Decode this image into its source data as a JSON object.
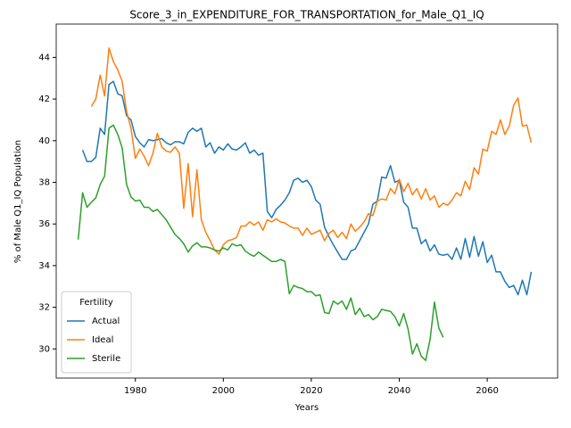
{
  "chart_data": {
    "type": "line",
    "title": "Score_3_in_EXPENDITURE_FOR_TRANSPORTATION_for_Male_Q1_IQ",
    "xlabel": "Years",
    "ylabel": "% of Male Q1_IQ Population",
    "legend_title": "Fertility",
    "legend": "lower left",
    "grid": false,
    "x": [
      1967,
      1968,
      1969,
      1970,
      1971,
      1972,
      1973,
      1974,
      1975,
      1976,
      1977,
      1978,
      1979,
      1980,
      1981,
      1982,
      1983,
      1984,
      1985,
      1986,
      1987,
      1988,
      1989,
      1990,
      1991,
      1992,
      1993,
      1994,
      1995,
      1996,
      1997,
      1998,
      1999,
      2000,
      2001,
      2002,
      2003,
      2004,
      2005,
      2006,
      2007,
      2008,
      2009,
      2010,
      2011,
      2012,
      2013,
      2014,
      2015,
      2016,
      2017,
      2018,
      2019,
      2020,
      2021,
      2022,
      2023,
      2024,
      2025,
      2026,
      2027,
      2028,
      2029,
      2030,
      2031,
      2032,
      2033,
      2034,
      2035,
      2036,
      2037,
      2038,
      2039,
      2040,
      2041,
      2042,
      2043,
      2044,
      2045,
      2046,
      2047,
      2048,
      2049,
      2050,
      2051,
      2052,
      2053,
      2054,
      2055,
      2056,
      2057,
      2058,
      2059,
      2060,
      2061,
      2062,
      2063,
      2064,
      2065,
      2066,
      2067,
      2068,
      2069,
      2070
    ],
    "series": [
      {
        "name": "Actual",
        "color": "#1f77b4",
        "values": [
          null,
          39.55,
          39.0,
          39.0,
          39.2,
          40.6,
          40.3,
          42.7,
          42.85,
          42.25,
          42.15,
          41.2,
          41.0,
          40.2,
          39.9,
          39.7,
          40.05,
          40.0,
          40.05,
          40.1,
          39.9,
          39.8,
          39.95,
          39.95,
          39.85,
          40.4,
          40.6,
          40.45,
          40.6,
          39.7,
          39.9,
          39.4,
          39.7,
          39.55,
          39.85,
          39.6,
          39.55,
          39.7,
          39.9,
          39.4,
          39.55,
          39.3,
          39.4,
          36.6,
          36.3,
          36.7,
          36.9,
          37.15,
          37.5,
          38.1,
          38.2,
          38.0,
          38.1,
          37.8,
          37.15,
          36.95,
          35.85,
          35.4,
          35.0,
          34.65,
          34.3,
          34.3,
          34.7,
          34.8,
          35.2,
          35.6,
          36.0,
          36.95,
          37.1,
          38.25,
          38.2,
          38.8,
          38.0,
          38.1,
          37.05,
          36.8,
          35.8,
          35.8,
          35.05,
          35.25,
          34.7,
          35.0,
          34.55,
          34.5,
          34.55,
          34.3,
          34.85,
          34.3,
          35.3,
          34.4,
          35.4,
          34.45,
          35.15,
          34.15,
          34.5,
          33.7,
          33.7,
          33.25,
          32.95,
          33.05,
          32.6,
          33.3,
          32.6,
          33.7
        ]
      },
      {
        "name": "Ideal",
        "color": "#ff7f0e",
        "values": [
          null,
          null,
          null,
          41.65,
          42.0,
          43.15,
          42.15,
          44.45,
          43.8,
          43.4,
          42.85,
          41.4,
          40.6,
          39.15,
          39.6,
          39.25,
          38.8,
          39.4,
          40.35,
          39.7,
          39.5,
          39.45,
          39.7,
          39.4,
          36.75,
          38.9,
          36.35,
          38.6,
          36.2,
          35.6,
          35.2,
          34.75,
          34.55,
          35.0,
          35.2,
          35.25,
          35.35,
          35.9,
          35.9,
          36.1,
          35.95,
          36.1,
          35.7,
          36.2,
          36.1,
          36.25,
          36.1,
          36.05,
          35.9,
          35.8,
          35.8,
          35.45,
          35.8,
          35.5,
          35.6,
          35.7,
          35.2,
          35.55,
          35.7,
          35.35,
          35.6,
          35.3,
          36.0,
          35.65,
          35.85,
          36.1,
          36.5,
          36.4,
          37.1,
          37.2,
          37.15,
          37.7,
          37.45,
          38.15,
          37.55,
          37.95,
          37.4,
          37.7,
          37.2,
          37.7,
          37.15,
          37.35,
          36.8,
          37.0,
          36.9,
          37.15,
          37.5,
          37.35,
          38.05,
          37.65,
          38.7,
          38.4,
          39.6,
          39.5,
          40.45,
          40.3,
          41.0,
          40.3,
          40.7,
          41.7,
          42.05,
          40.7,
          40.75,
          39.9
        ]
      },
      {
        "name": "Sterile",
        "color": "#2ca02c",
        "values": [
          35.25,
          37.5,
          36.8,
          37.05,
          37.25,
          37.9,
          38.3,
          40.6,
          40.75,
          40.3,
          39.65,
          37.9,
          37.3,
          37.1,
          37.15,
          36.8,
          36.8,
          36.6,
          36.7,
          36.45,
          36.2,
          35.85,
          35.5,
          35.3,
          35.05,
          34.65,
          34.95,
          35.1,
          34.9,
          34.9,
          34.85,
          34.75,
          34.7,
          34.85,
          34.75,
          35.05,
          34.95,
          35.0,
          34.7,
          34.55,
          34.45,
          34.65,
          34.5,
          34.35,
          34.2,
          34.2,
          34.3,
          34.2,
          32.65,
          33.05,
          32.95,
          32.9,
          32.75,
          32.75,
          32.55,
          32.6,
          31.75,
          31.7,
          32.3,
          32.15,
          32.3,
          31.9,
          32.45,
          31.65,
          31.95,
          31.55,
          31.65,
          31.4,
          31.55,
          31.9,
          31.85,
          31.8,
          31.55,
          31.1,
          31.7,
          30.95,
          29.75,
          30.25,
          29.65,
          29.45,
          30.45,
          32.25,
          31.0,
          30.55,
          null,
          null,
          null,
          null,
          null,
          null,
          null,
          null,
          null,
          null,
          null,
          null,
          null,
          null,
          null,
          null,
          null,
          null,
          null,
          null
        ]
      }
    ],
    "xlim": [
      1962,
      2076
    ],
    "xticks": [
      1980,
      2000,
      2020,
      2040,
      2060
    ],
    "ylim": [
      28.6,
      45.6
    ],
    "yticks": [
      30,
      32,
      34,
      36,
      38,
      40,
      42,
      44
    ]
  }
}
